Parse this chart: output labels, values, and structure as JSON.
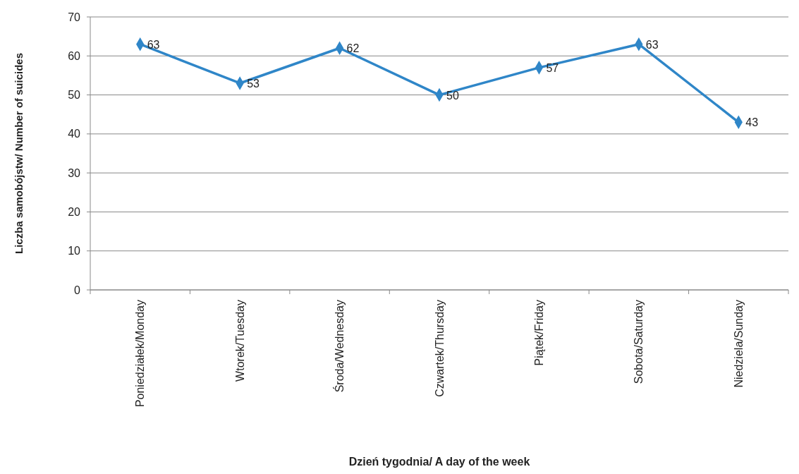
{
  "chart_data": {
    "type": "line",
    "xlabel": "Dzień tygodnia/ A day of the week",
    "ylabel": "Liczba samobójstw/ Number of suicides",
    "categories": [
      "Poniedziałek/Monday",
      "Wtorek/Tuesday",
      "Środa/Wednesday",
      "Czwartek/Thursday",
      "Piątek/Friday",
      "Sobota/Saturday",
      "Niedziela/Sunday"
    ],
    "series": [
      {
        "color": "#2f86c8",
        "values": [
          63,
          53,
          62,
          50,
          57,
          63,
          43
        ]
      }
    ],
    "ylim": [
      0,
      70
    ],
    "yticks": [
      0,
      10,
      20,
      30,
      40,
      50,
      60,
      70
    ],
    "grid": "y",
    "marker": "diamond",
    "line_style": "solid",
    "data_labels": true
  }
}
